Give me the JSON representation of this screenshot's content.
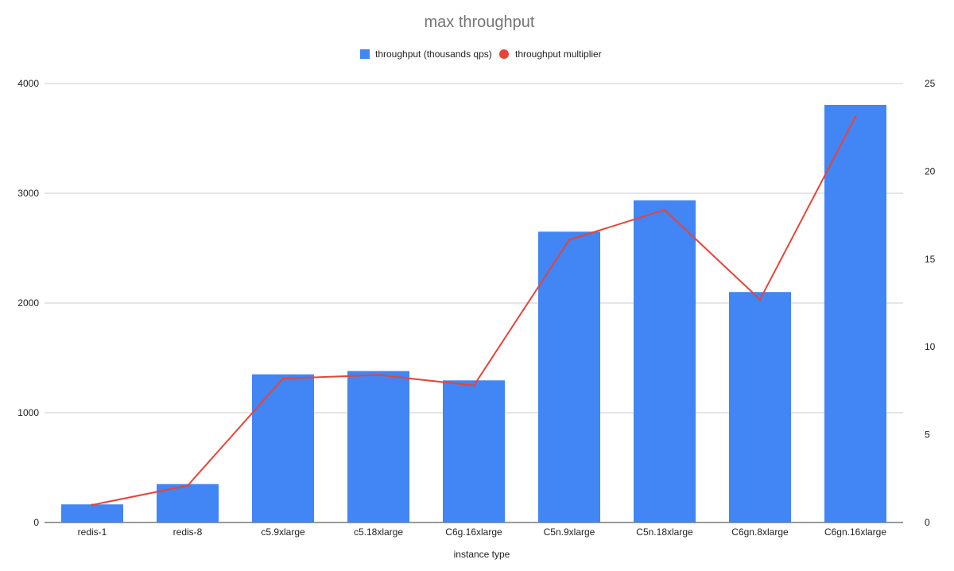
{
  "chart_data": {
    "type": "bar",
    "title": "max throughput",
    "xlabel": "instance type",
    "ylabel": "",
    "ylabel_right": "",
    "categories": [
      "redis-1",
      "redis-8",
      "c5.9xlarge",
      "c5.18xlarge",
      "C6g.16xlarge",
      "C5n.9xlarge",
      "C5n.18xlarge",
      "C6gn.8xlarge",
      "C6gn.16xlarge"
    ],
    "series": [
      {
        "name": "throughput (thousands qps)",
        "type": "bar",
        "axis": "left",
        "color": "#4285f4",
        "values": [
          165,
          350,
          1350,
          1380,
          1295,
          2650,
          2935,
          2100,
          3805
        ]
      },
      {
        "name": "throughput multiplier",
        "type": "line",
        "axis": "right",
        "color": "#ea4335",
        "values": [
          1.0,
          2.1,
          8.2,
          8.4,
          7.8,
          16.1,
          17.8,
          12.7,
          23.1
        ]
      }
    ],
    "ylim": [
      0,
      4000
    ],
    "yticks": [
      "0",
      "1000",
      "2000",
      "3000",
      "4000"
    ],
    "ylim_right": [
      0,
      25
    ],
    "yticks_right": [
      "0",
      "5",
      "10",
      "15",
      "20",
      "25"
    ],
    "legend_position": "top",
    "grid": true
  }
}
